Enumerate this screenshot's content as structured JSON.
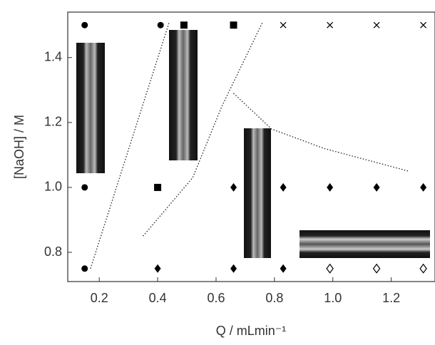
{
  "chart_data": {
    "type": "scatter",
    "xlabel": "Q / mLmin⁻¹",
    "ylabel": "[NaOH] / M",
    "xlim": [
      0.092,
      1.35
    ],
    "ylim": [
      0.71,
      1.54
    ],
    "xticks": [
      0.2,
      0.4,
      0.6,
      0.8,
      {
        "value": 1,
        "label": "1.0"
      },
      1.2
    ],
    "yticks": [
      0.8,
      {
        "value": 1,
        "label": "1.0"
      },
      1.2,
      1.4
    ],
    "color": "#000000",
    "series": [
      {
        "marker": "circle",
        "x": [
          0.15,
          0.41,
          0.15,
          0.15
        ],
        "y": [
          1.5,
          1.5,
          1.0,
          0.75
        ]
      },
      {
        "marker": "square",
        "x": [
          0.49,
          0.66,
          0.4
        ],
        "y": [
          1.5,
          1.5,
          1.0
        ]
      },
      {
        "marker": "cross",
        "x": [
          0.83,
          0.99,
          1.15,
          1.31
        ],
        "y": [
          1.5,
          1.5,
          1.5,
          1.5
        ]
      },
      {
        "marker": "diamond",
        "x": [
          0.66,
          0.83,
          0.99,
          1.15,
          1.31,
          0.4,
          0.66,
          0.83
        ],
        "y": [
          1.0,
          1.0,
          1.0,
          1.0,
          1.0,
          0.75,
          0.75,
          0.75
        ]
      },
      {
        "marker": "open-diamond",
        "x": [
          0.99,
          1.15,
          1.31
        ],
        "y": [
          0.75,
          0.75,
          0.75
        ]
      }
    ],
    "boundaries": [
      {
        "x": [
          0.17,
          0.44
        ],
        "y": [
          0.75,
          1.51
        ]
      },
      {
        "x": [
          0.35,
          0.52,
          0.62,
          0.76
        ],
        "y": [
          0.85,
          1.03,
          1.25,
          1.51
        ]
      },
      {
        "x": [
          0.66,
          0.79,
          0.97,
          1.26
        ],
        "y": [
          1.29,
          1.18,
          1.12,
          1.05
        ]
      }
    ]
  }
}
